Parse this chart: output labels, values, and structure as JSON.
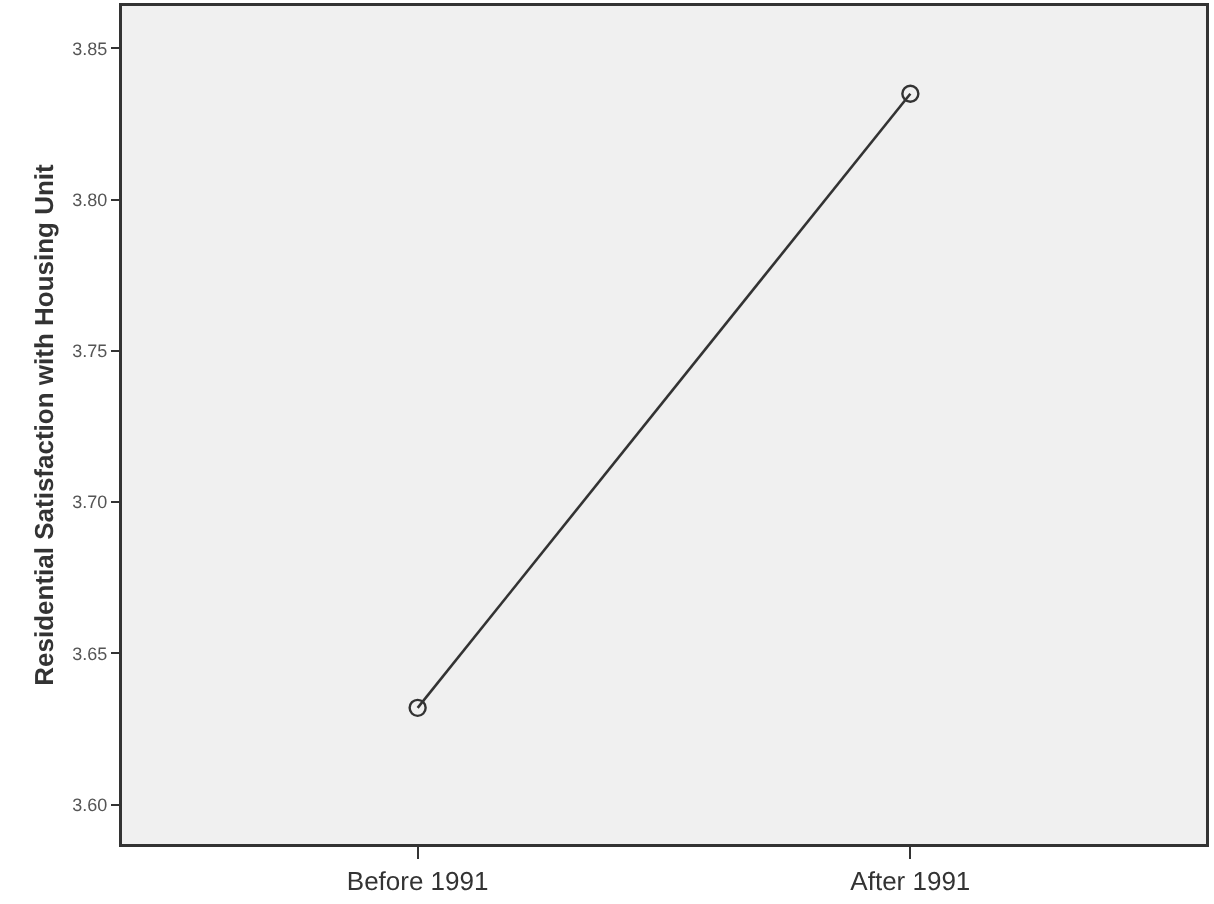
{
  "chart_data": {
    "type": "line",
    "ylabel": "Residential Satisfaction with Housing Unit",
    "categories": [
      "Before 1991",
      "After 1991"
    ],
    "series": [
      {
        "color": "#333333",
        "values": [
          3.632,
          3.835
        ]
      }
    ],
    "ylim": [
      3.587,
      3.864
    ],
    "yticks": [
      {
        "value": 3.6,
        "label": "3.60"
      },
      3.65,
      {
        "value": 3.7,
        "label": "3.70"
      },
      3.75,
      {
        "value": 3.8,
        "label": "3.80"
      },
      3.85
    ],
    "grid": false,
    "marker": "circle",
    "line_style": "solid"
  }
}
